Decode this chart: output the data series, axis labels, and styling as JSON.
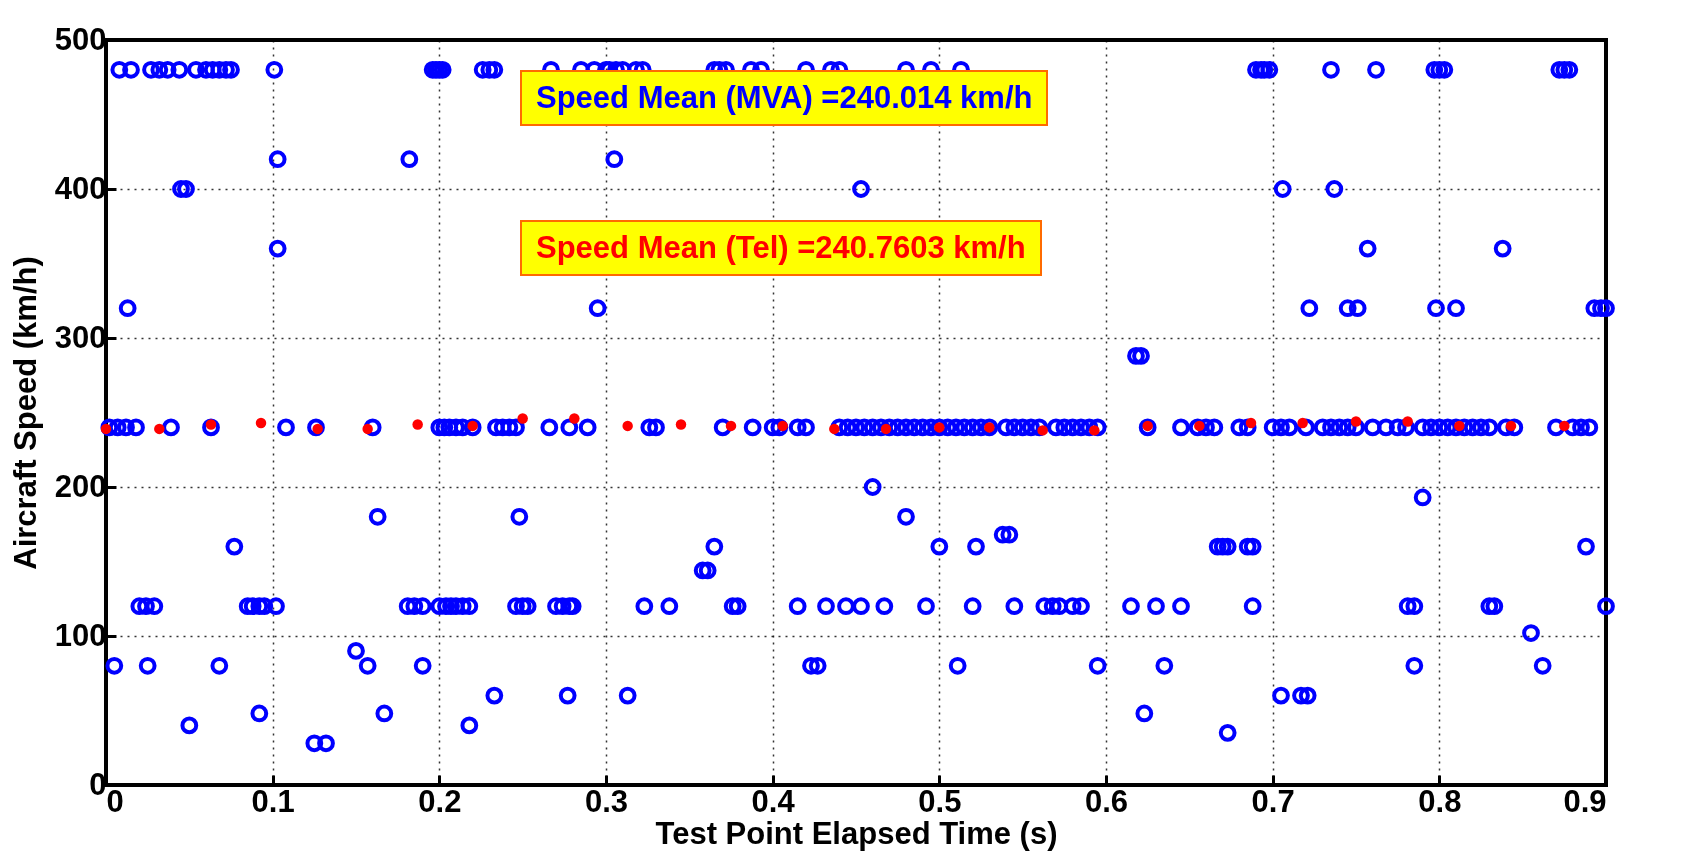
{
  "chart_data": {
    "type": "scatter",
    "xlabel": "Test Point Elapsed Time (s)",
    "ylabel": "Aircraft Speed (km/h)",
    "xlim": [
      0,
      0.9
    ],
    "ylim": [
      0,
      500
    ],
    "xticks": [
      0,
      0.1,
      0.2,
      0.3,
      0.4,
      0.5,
      0.6,
      0.7,
      0.8,
      0.9
    ],
    "yticks": [
      0,
      100,
      200,
      300,
      400,
      500
    ],
    "grid": true,
    "marker": "circle",
    "annotations": [
      "Speed Mean (MVA) =240.014 km/h",
      "Speed Mean (Tel) =240.7603 km/h"
    ],
    "series": [
      {
        "color": "#0000ff",
        "x": [
          0.008,
          0.015,
          0.027,
          0.032,
          0.037,
          0.044,
          0.054,
          0.06,
          0.064,
          0.068,
          0.072,
          0.075,
          0.101,
          0.196,
          0.198,
          0.2,
          0.202,
          0.226,
          0.23,
          0.233,
          0.267,
          0.285,
          0.293,
          0.3,
          0.302,
          0.306,
          0.31,
          0.318,
          0.322,
          0.365,
          0.368,
          0.372,
          0.387,
          0.393,
          0.42,
          0.435,
          0.44,
          0.48,
          0.495,
          0.513,
          0.69,
          0.693,
          0.695,
          0.698,
          0.735,
          0.762,
          0.797,
          0.8,
          0.803,
          0.872,
          0.875,
          0.878,
          0.103,
          0.182,
          0.305,
          0.045,
          0.048,
          0.453,
          0.706,
          0.737,
          0.103,
          0.757,
          0.838,
          0.013,
          0.295,
          0.722,
          0.745,
          0.751,
          0.798,
          0.81,
          0.893,
          0.897,
          0.9,
          0.618,
          0.621,
          0.002,
          0.007,
          0.012,
          0.018,
          0.039,
          0.063,
          0.108,
          0.126,
          0.16,
          0.2,
          0.203,
          0.206,
          0.21,
          0.214,
          0.22,
          0.234,
          0.238,
          0.242,
          0.246,
          0.266,
          0.278,
          0.289,
          0.326,
          0.33,
          0.37,
          0.388,
          0.4,
          0.404,
          0.415,
          0.42,
          0.44,
          0.445,
          0.45,
          0.455,
          0.46,
          0.465,
          0.47,
          0.475,
          0.48,
          0.485,
          0.49,
          0.495,
          0.5,
          0.505,
          0.51,
          0.515,
          0.52,
          0.525,
          0.53,
          0.54,
          0.545,
          0.55,
          0.555,
          0.56,
          0.57,
          0.575,
          0.58,
          0.585,
          0.59,
          0.595,
          0.625,
          0.645,
          0.655,
          0.66,
          0.665,
          0.68,
          0.685,
          0.7,
          0.705,
          0.71,
          0.72,
          0.73,
          0.735,
          0.74,
          0.745,
          0.75,
          0.76,
          0.768,
          0.775,
          0.78,
          0.79,
          0.795,
          0.8,
          0.805,
          0.81,
          0.815,
          0.82,
          0.825,
          0.83,
          0.84,
          0.845,
          0.87,
          0.88,
          0.885,
          0.89,
          0.46,
          0.79,
          0.163,
          0.248,
          0.48,
          0.538,
          0.542,
          0.077,
          0.365,
          0.5,
          0.522,
          0.667,
          0.67,
          0.673,
          0.685,
          0.688,
          0.888,
          0.358,
          0.361,
          0.02,
          0.024,
          0.029,
          0.085,
          0.088,
          0.092,
          0.095,
          0.102,
          0.181,
          0.185,
          0.19,
          0.2,
          0.204,
          0.207,
          0.21,
          0.214,
          0.218,
          0.246,
          0.25,
          0.253,
          0.27,
          0.274,
          0.278,
          0.28,
          0.323,
          0.338,
          0.376,
          0.379,
          0.415,
          0.432,
          0.444,
          0.453,
          0.467,
          0.492,
          0.52,
          0.545,
          0.563,
          0.568,
          0.572,
          0.58,
          0.585,
          0.615,
          0.63,
          0.645,
          0.688,
          0.781,
          0.785,
          0.83,
          0.833,
          0.9,
          0.855,
          0.15,
          0.005,
          0.025,
          0.068,
          0.157,
          0.19,
          0.423,
          0.427,
          0.511,
          0.595,
          0.635,
          0.785,
          0.862,
          0.233,
          0.277,
          0.313,
          0.705,
          0.717,
          0.721,
          0.092,
          0.167,
          0.623,
          0.05,
          0.218,
          0.673,
          0.125,
          0.132
        ],
        "values": [
          480,
          480,
          480,
          480,
          480,
          480,
          480,
          480,
          480,
          480,
          480,
          480,
          480,
          480,
          480,
          480,
          480,
          480,
          480,
          480,
          480,
          480,
          480,
          480,
          480,
          480,
          480,
          480,
          480,
          480,
          480,
          480,
          480,
          480,
          480,
          480,
          480,
          480,
          480,
          480,
          480,
          480,
          480,
          480,
          480,
          480,
          480,
          480,
          480,
          480,
          480,
          480,
          420,
          420,
          420,
          400,
          400,
          400,
          400,
          400,
          360,
          360,
          360,
          320,
          320,
          320,
          320,
          320,
          320,
          320,
          320,
          320,
          320,
          288,
          288,
          240,
          240,
          240,
          240,
          240,
          240,
          240,
          240,
          240,
          240,
          240,
          240,
          240,
          240,
          240,
          240,
          240,
          240,
          240,
          240,
          240,
          240,
          240,
          240,
          240,
          240,
          240,
          240,
          240,
          240,
          240,
          240,
          240,
          240,
          240,
          240,
          240,
          240,
          240,
          240,
          240,
          240,
          240,
          240,
          240,
          240,
          240,
          240,
          240,
          240,
          240,
          240,
          240,
          240,
          240,
          240,
          240,
          240,
          240,
          240,
          240,
          240,
          240,
          240,
          240,
          240,
          240,
          240,
          240,
          240,
          240,
          240,
          240,
          240,
          240,
          240,
          240,
          240,
          240,
          240,
          240,
          240,
          240,
          240,
          240,
          240,
          240,
          240,
          240,
          240,
          240,
          240,
          240,
          240,
          240,
          200,
          193,
          180,
          180,
          180,
          168,
          168,
          160,
          160,
          160,
          160,
          160,
          160,
          160,
          160,
          160,
          160,
          144,
          144,
          120,
          120,
          120,
          120,
          120,
          120,
          120,
          120,
          120,
          120,
          120,
          120,
          120,
          120,
          120,
          120,
          120,
          120,
          120,
          120,
          120,
          120,
          120,
          120,
          120,
          120,
          120,
          120,
          120,
          120,
          120,
          120,
          120,
          120,
          120,
          120,
          120,
          120,
          120,
          120,
          120,
          120,
          120,
          120,
          120,
          120,
          120,
          120,
          120,
          120,
          102,
          90,
          80,
          80,
          80,
          80,
          80,
          80,
          80,
          80,
          80,
          80,
          80,
          80,
          60,
          60,
          60,
          60,
          60,
          60,
          48,
          48,
          48,
          40,
          40,
          35,
          28,
          28
        ]
      },
      {
        "color": "#ff0000",
        "x": [
          0.0,
          0.032,
          0.063,
          0.093,
          0.127,
          0.157,
          0.187,
          0.22,
          0.25,
          0.281,
          0.313,
          0.345,
          0.375,
          0.406,
          0.437,
          0.468,
          0.5,
          0.53,
          0.562,
          0.593,
          0.625,
          0.656,
          0.687,
          0.718,
          0.75,
          0.781,
          0.812,
          0.843,
          0.875
        ],
        "values": [
          239,
          239,
          242,
          243,
          239,
          239,
          242,
          241,
          246,
          246,
          241,
          242,
          241,
          241,
          239,
          239,
          240,
          240,
          238,
          238,
          241,
          241,
          243,
          243,
          244,
          244,
          241,
          241,
          241
        ]
      }
    ]
  }
}
